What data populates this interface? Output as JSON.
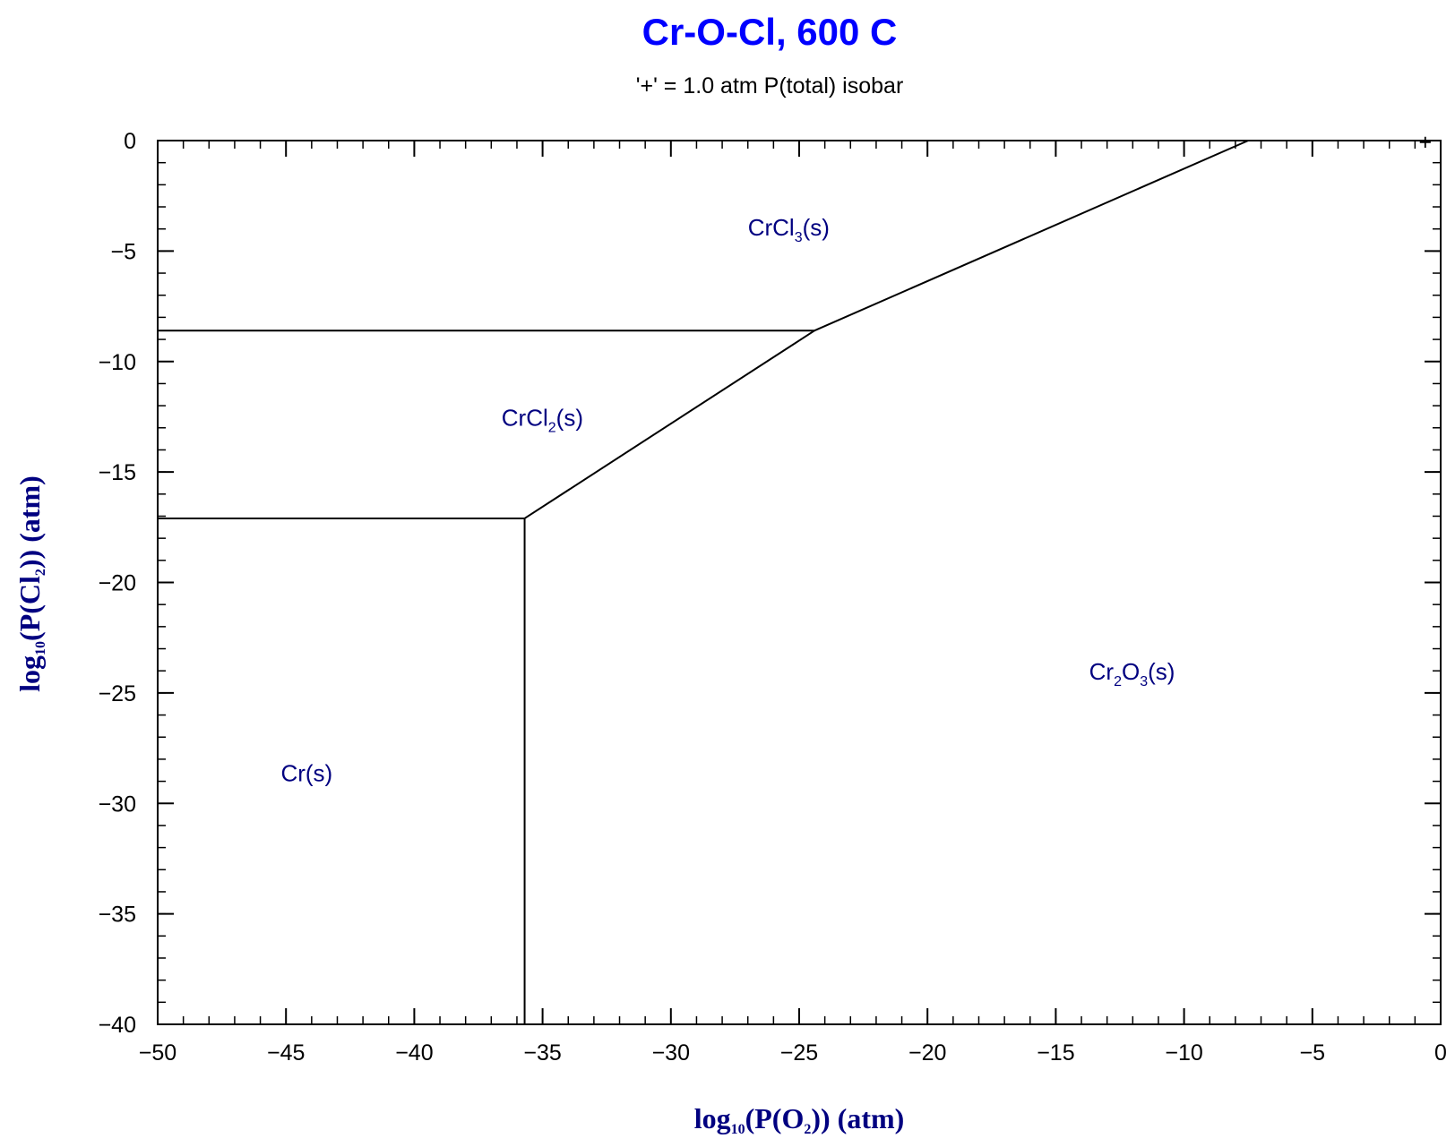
{
  "chart_data": {
    "type": "line",
    "title": "Cr-O-Cl, 600 C",
    "subtitle": "'+' = 1.0 atm P(total) isobar",
    "xlabel": {
      "pre": "log",
      "sub1": "10",
      "mid": "(P(O",
      "sub2": "2",
      "post": ")) (atm)"
    },
    "ylabel": {
      "pre": "log",
      "sub1": "10",
      "mid": "(P(Cl",
      "sub2": "2",
      "post": ")) (atm)"
    },
    "xlim": [
      -50,
      0
    ],
    "ylim": [
      -40,
      0
    ],
    "xticks": [
      -50,
      -45,
      -40,
      -35,
      -30,
      -25,
      -20,
      -15,
      -10,
      -5,
      0
    ],
    "yticks": [
      0,
      -5,
      -10,
      -15,
      -20,
      -25,
      -30,
      -35,
      -40
    ],
    "xtick_labels": [
      "−50",
      "−45",
      "−40",
      "−35",
      "−30",
      "−25",
      "−20",
      "−15",
      "−10",
      "−5",
      "0"
    ],
    "ytick_labels": [
      "0",
      "−5",
      "−10",
      "−15",
      "−20",
      "−25",
      "−30",
      "−35",
      "−40"
    ],
    "boundaries": [
      {
        "name": "CrCl3-CrCl2",
        "points": [
          [
            -50,
            -8.6
          ],
          [
            -24.4,
            -8.6
          ]
        ]
      },
      {
        "name": "CrCl3-Cr2O3",
        "points": [
          [
            -24.4,
            -8.6
          ],
          [
            -7.5,
            0
          ]
        ]
      },
      {
        "name": "CrCl2-Cr2O3",
        "points": [
          [
            -35.7,
            -17.1
          ],
          [
            -24.4,
            -8.6
          ]
        ]
      },
      {
        "name": "CrCl2-Cr",
        "points": [
          [
            -50,
            -17.1
          ],
          [
            -35.7,
            -17.1
          ]
        ]
      },
      {
        "name": "Cr-Cr2O3",
        "points": [
          [
            -35.7,
            -17.1
          ],
          [
            -35.7,
            -40
          ]
        ]
      }
    ],
    "isobar_marker": {
      "symbol": "+",
      "x": -0.6,
      "y": 0
    },
    "regions": [
      {
        "parts": [
          [
            "CrCl",
            "n"
          ],
          [
            "3",
            "s"
          ],
          [
            "(s)",
            "n"
          ]
        ],
        "x": -27.0,
        "y": -4.3
      },
      {
        "parts": [
          [
            "CrCl",
            "n"
          ],
          [
            "2",
            "s"
          ],
          [
            "(s)",
            "n"
          ]
        ],
        "x": -36.6,
        "y": -12.9
      },
      {
        "parts": [
          [
            "Cr",
            "n"
          ],
          [
            "2",
            "s"
          ],
          [
            "O",
            "n"
          ],
          [
            "3",
            "s"
          ],
          [
            "(s)",
            "n"
          ]
        ],
        "x": -13.7,
        "y": -24.4
      },
      {
        "parts": [
          [
            "Cr(s)",
            "n"
          ]
        ],
        "x": -45.2,
        "y": -29.0
      }
    ]
  }
}
